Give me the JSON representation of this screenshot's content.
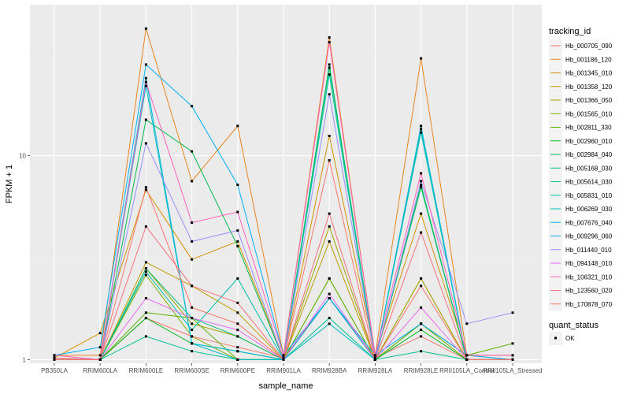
{
  "chart_data": {
    "type": "line",
    "xlabel": "sample_name",
    "ylabel": "FPKM + 1",
    "y_scale": "log10",
    "ylim": [
      0.96,
      55
    ],
    "y_ticks": [
      1,
      10
    ],
    "y_tick_labels": [
      "1",
      "10"
    ],
    "grid": true,
    "legend_position": "right",
    "categories": [
      "PB350LA",
      "RRIM600LA",
      "RRIM600LE",
      "RRIM600SE",
      "RRIM600PE",
      "RRIM901LA",
      "RRIM928BA",
      "RRIM928LA",
      "RRIM928LE",
      "RRII105LA_Control",
      "RRII105LA_Stressed"
    ],
    "legend_title": "tracking_id",
    "shape_legend": {
      "title": "quant_status",
      "entries": [
        "OK"
      ]
    },
    "series": [
      {
        "name": "Hb_000705_090",
        "color": "#F8766D",
        "values": [
          1.02,
          1.0,
          1.6,
          1.3,
          1.15,
          1.02,
          2.0,
          1.02,
          1.3,
          1.0,
          1.0
        ]
      },
      {
        "name": "Hb_001186_120",
        "color": "#E7851E",
        "values": [
          1.05,
          1.05,
          42.0,
          7.5,
          14.0,
          1.05,
          38.0,
          1.05,
          30.0,
          1.05,
          1.05
        ]
      },
      {
        "name": "Hb_001345_010",
        "color": "#D39200",
        "values": [
          1.02,
          1.35,
          6.8,
          3.1,
          3.8,
          1.02,
          12.5,
          1.05,
          5.2,
          1.05,
          1.0
        ]
      },
      {
        "name": "Hb_001358_120",
        "color": "#BC9D00",
        "values": [
          1.0,
          1.0,
          3.0,
          2.3,
          1.7,
          1.0,
          3.8,
          1.0,
          2.5,
          1.0,
          1.0
        ]
      },
      {
        "name": "Hb_001366_050",
        "color": "#A3A500",
        "values": [
          1.0,
          1.0,
          2.8,
          1.5,
          1.3,
          1.0,
          4.5,
          1.0,
          2.5,
          1.0,
          1.0
        ]
      },
      {
        "name": "Hb_001565_010",
        "color": "#85AD00",
        "values": [
          1.0,
          1.0,
          2.6,
          1.3,
          1.0,
          1.0,
          2.5,
          1.0,
          1.5,
          1.0,
          1.0
        ]
      },
      {
        "name": "Hb_002811_330",
        "color": "#5BB300",
        "values": [
          1.0,
          1.0,
          1.7,
          1.6,
          1.0,
          1.0,
          2.5,
          1.0,
          1.5,
          1.05,
          1.2
        ]
      },
      {
        "name": "Hb_002960_010",
        "color": "#00B81F",
        "values": [
          1.0,
          1.0,
          1.6,
          1.2,
          1.1,
          1.0,
          2.0,
          1.0,
          1.4,
          1.0,
          1.0
        ]
      },
      {
        "name": "Hb_002984_040",
        "color": "#00BB4E",
        "values": [
          1.0,
          1.0,
          15.0,
          10.5,
          3.6,
          1.0,
          28.0,
          1.0,
          7.0,
          1.0,
          1.0
        ]
      },
      {
        "name": "Hb_005168_030",
        "color": "#00BE72",
        "values": [
          1.0,
          1.0,
          2.8,
          1.6,
          1.3,
          1.0,
          27.0,
          1.0,
          7.2,
          1.0,
          1.0
        ]
      },
      {
        "name": "Hb_005614_030",
        "color": "#00C090",
        "values": [
          1.0,
          1.0,
          1.3,
          1.1,
          1.0,
          1.0,
          1.6,
          1.0,
          1.1,
          1.0,
          1.0
        ]
      },
      {
        "name": "Hb_005831_010",
        "color": "#00C0AA",
        "values": [
          1.0,
          1.0,
          2.7,
          1.4,
          2.5,
          1.0,
          25.0,
          1.0,
          13.0,
          1.0,
          1.0
        ]
      },
      {
        "name": "Hb_006269_030",
        "color": "#00BDC2",
        "values": [
          1.0,
          1.0,
          22.0,
          1.2,
          1.0,
          1.0,
          1.5,
          1.0,
          13.5,
          1.0,
          1.0
        ]
      },
      {
        "name": "Hb_007676_040",
        "color": "#00B8D7",
        "values": [
          1.0,
          1.0,
          24.0,
          1.2,
          1.1,
          1.0,
          2.0,
          1.0,
          14.0,
          1.0,
          1.0
        ]
      },
      {
        "name": "Hb_009296_060",
        "color": "#00B0F6",
        "values": [
          1.05,
          1.15,
          28.0,
          17.5,
          7.2,
          1.05,
          2.0,
          1.05,
          1.5,
          1.05,
          1.0
        ]
      },
      {
        "name": "Hb_011440_010",
        "color": "#9590FF",
        "values": [
          1.0,
          1.0,
          11.5,
          3.8,
          4.3,
          1.0,
          20.0,
          1.0,
          7.5,
          1.5,
          1.7
        ]
      },
      {
        "name": "Hb_094148_010",
        "color": "#E76BF3",
        "values": [
          1.0,
          1.0,
          2.0,
          1.6,
          1.4,
          1.0,
          2.1,
          1.0,
          1.8,
          1.0,
          1.0
        ]
      },
      {
        "name": "Hb_106321_010",
        "color": "#FF62BC",
        "values": [
          1.05,
          1.0,
          23.0,
          4.7,
          5.3,
          1.05,
          36.0,
          1.05,
          8.2,
          1.05,
          1.05
        ]
      },
      {
        "name": "Hb_123560_020",
        "color": "#F5707E",
        "values": [
          1.0,
          1.0,
          4.5,
          2.3,
          1.9,
          1.0,
          5.2,
          1.0,
          4.2,
          1.0,
          1.0
        ]
      },
      {
        "name": "Hb_170878_070",
        "color": "#F8766D",
        "values": [
          1.0,
          1.0,
          7.0,
          1.8,
          1.5,
          1.0,
          9.5,
          1.0,
          2.3,
          1.0,
          1.0
        ]
      }
    ]
  }
}
